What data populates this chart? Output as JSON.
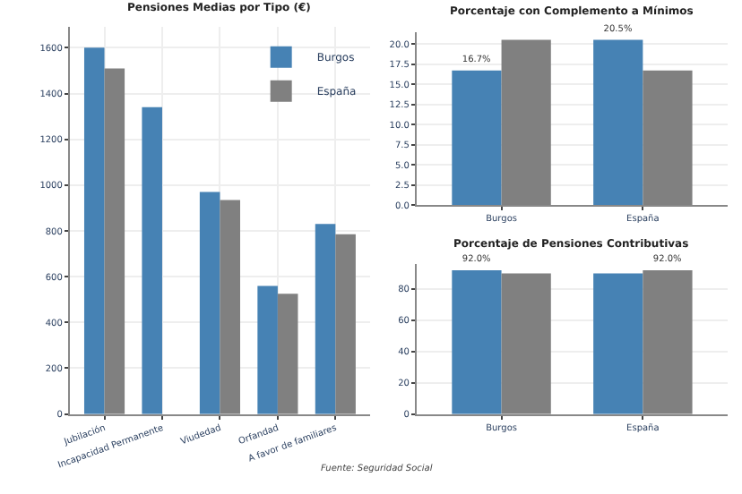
{
  "chart_data": [
    {
      "type": "bar",
      "title": "Pensiones Medias por Tipo (€)",
      "categories": [
        "Jubilación",
        "Incapacidad Permanente",
        "Viudedad",
        "Orfandad",
        "A favor de familiares"
      ],
      "series": [
        {
          "name": "Burgos",
          "color": "#4682b4",
          "values": [
            1600,
            1340,
            970,
            560,
            830
          ]
        },
        {
          "name": "España",
          "color": "#808080",
          "values": [
            1510,
            null,
            935,
            525,
            785
          ]
        }
      ],
      "ylim": [
        0,
        1690
      ],
      "yticks": [
        0,
        200,
        400,
        600,
        800,
        1000,
        1200,
        1400,
        1600
      ],
      "grid": true,
      "legend": "top right",
      "annotations": [
        "Fuente: Seguridad Social"
      ]
    },
    {
      "type": "bar",
      "title": "Porcentaje con Complemento a Mínimos",
      "categories": [
        "Burgos",
        "España"
      ],
      "series": [
        {
          "color": "#4682b4",
          "values": [
            16.7,
            20.5
          ],
          "value_labels": [
            "16.7%",
            "20.5%"
          ]
        },
        {
          "color": "#808080",
          "values": [
            20.5,
            16.7
          ]
        }
      ],
      "ylim": [
        0,
        21.5
      ],
      "yticks": [
        {
          "value": 0,
          "label": "0.0"
        },
        {
          "value": 2.5,
          "label": "2.5"
        },
        {
          "value": 5,
          "label": "5.0"
        },
        {
          "value": 7.5,
          "label": "7.5"
        },
        {
          "value": 10,
          "label": "10.0"
        },
        {
          "value": 12.5,
          "label": "12.5"
        },
        {
          "value": 15,
          "label": "15.0"
        },
        {
          "value": 17.5,
          "label": "17.5"
        },
        {
          "value": 20,
          "label": "20.0"
        }
      ],
      "grid": "y"
    },
    {
      "type": "bar",
      "title": "Porcentaje de Pensiones Contributivas",
      "categories": [
        "Burgos",
        "España"
      ],
      "series": [
        {
          "color": "#4682b4",
          "values": [
            92.0,
            90.0
          ],
          "value_labels": [
            "92.0%",
            null
          ]
        },
        {
          "color": "#808080",
          "values": [
            90.0,
            92.0
          ],
          "value_labels": [
            null,
            "92.0%"
          ]
        }
      ],
      "ylim": [
        0,
        96
      ],
      "yticks": [
        0,
        20,
        40,
        60,
        80
      ],
      "grid": "y"
    }
  ]
}
